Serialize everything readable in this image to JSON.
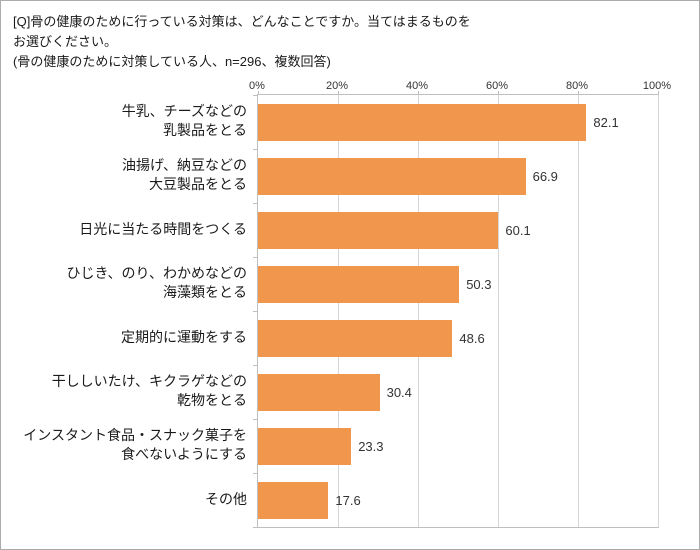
{
  "header": {
    "title_line1": "[Q]骨の健康のために行っている対策は、どんなことですか。当てはまるものを",
    "title_line2": "お選びください。",
    "note": "(骨の健康のために対策している人、n=296、複数回答)"
  },
  "chart_data": {
    "type": "bar",
    "orientation": "horizontal",
    "title": "骨の健康のために行っている対策",
    "categories": [
      "牛乳、チーズなどの乳製品をとる",
      "油揚げ、納豆などの大豆製品をとる",
      "日光に当たる時間をつくる",
      "ひじき、のり、わかめなどの海藻類をとる",
      "定期的に運動をする",
      "干ししいたけ、キクラゲなどの乾物をとる",
      "インスタント食品・スナック菓子を食べないようにする",
      "その他"
    ],
    "category_lines": [
      [
        "牛乳、チーズなどの",
        "乳製品をとる"
      ],
      [
        "油揚げ、納豆などの",
        "大豆製品をとる"
      ],
      [
        "日光に当たる時間をつくる"
      ],
      [
        "ひじき、のり、わかめなどの",
        "海藻類をとる"
      ],
      [
        "定期的に運動をする"
      ],
      [
        "干ししいたけ、キクラゲなどの",
        "乾物をとる"
      ],
      [
        "インスタント食品・スナック菓子を",
        "食べないようにする"
      ],
      [
        "その他"
      ]
    ],
    "values": [
      82.1,
      66.9,
      60.1,
      50.3,
      48.6,
      30.4,
      23.3,
      17.6
    ],
    "value_labels": [
      "82.1",
      "66.9",
      "60.1",
      "50.3",
      "48.6",
      "30.4",
      "23.3",
      "17.6"
    ],
    "xlim": [
      0,
      100
    ],
    "x_ticks": [
      "0%",
      "20%",
      "40%",
      "60%",
      "80%",
      "100%"
    ],
    "grid": true,
    "legend": false,
    "bar_color": "#F0974D",
    "grid_color": "#d6d6d6",
    "axis_color": "#bfbfbf"
  }
}
